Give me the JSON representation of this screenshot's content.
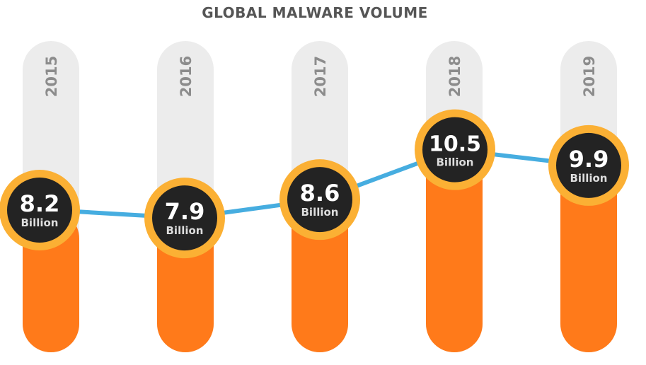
{
  "chart_data": {
    "type": "line",
    "title": "GLOBAL MALWARE VOLUME",
    "categories": [
      "2015",
      "2016",
      "2017",
      "2018",
      "2019"
    ],
    "values": [
      8.2,
      7.9,
      8.6,
      10.5,
      9.9
    ],
    "value_labels": [
      "8.2",
      "7.9",
      "8.6",
      "10.5",
      "9.9"
    ],
    "unit": "Billion",
    "legend": "none",
    "grid": false
  },
  "colors": {
    "track": "#ececec",
    "fill": "#ff7a1a",
    "ring": "#fbb034",
    "bubble": "#232323",
    "line": "#46ade0",
    "year_text": "#8c8c8c",
    "value_text": "#ffffff",
    "unit_text": "#dddddd",
    "title_text": "#555555"
  }
}
